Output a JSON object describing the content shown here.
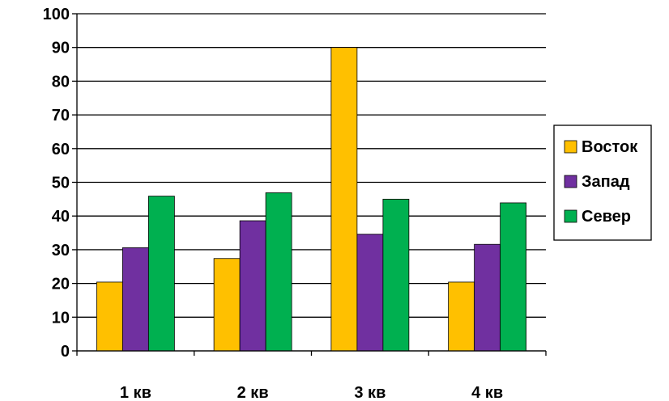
{
  "chart_data": {
    "type": "bar",
    "categories": [
      "1 кв",
      "2 кв",
      "3 кв",
      "4 кв"
    ],
    "series": [
      {
        "name": "Восток",
        "values": [
          20.4,
          27.4,
          90,
          20.4
        ],
        "color": "#FFC000"
      },
      {
        "name": "Запад",
        "values": [
          30.6,
          38.6,
          34.6,
          31.6
        ],
        "color": "#7030A0"
      },
      {
        "name": "Север",
        "values": [
          45.9,
          46.9,
          45,
          43.9
        ],
        "color": "#00B050"
      }
    ],
    "yticks": [
      "0",
      "10",
      "20",
      "30",
      "40",
      "50",
      "60",
      "70",
      "80",
      "90",
      "100"
    ],
    "ylim": [
      0,
      100
    ],
    "grid": true,
    "legend": "right"
  }
}
